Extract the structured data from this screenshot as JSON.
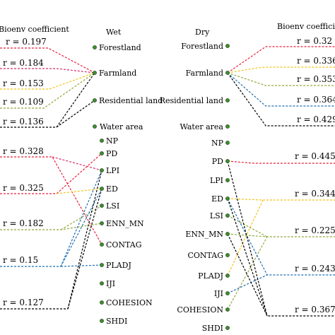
{
  "left_panel": {
    "header": "Bioenv coefficient",
    "title": "Wet",
    "land_use": [
      "Forestland",
      "Farmland",
      "Residential land"
    ],
    "land_use_coefficients": [
      "r = 0.197",
      "r = 0.184",
      "r = 0.153",
      "r = 0.109",
      "r = 0.136"
    ],
    "landscape_metrics": [
      "Water area",
      "NP",
      "PD",
      "LPI",
      "ED",
      "LSI",
      "ENN_MN",
      "CONTAG",
      "PLADJ",
      "IJI",
      "COHESION",
      "SHDI"
    ],
    "metric_coefficients": [
      "r = 0.328",
      "r = 0.325",
      "r = 0.182",
      "r = 0.15",
      "r = 0.127"
    ]
  },
  "right_panel": {
    "header": "Bioenv coefficient",
    "title": "Dry",
    "land_use": [
      "Forestland",
      "Farmland",
      "Residential land"
    ],
    "land_use_coefficients": [
      "r = 0.32",
      "r = 0.336",
      "r = 0.353",
      "r = 0.364",
      "r = 0.429"
    ],
    "landscape_metrics": [
      "Water area",
      "NP",
      "PD",
      "LPI",
      "ED",
      "LSI",
      "ENN_MN",
      "CONTAG",
      "PLADJ",
      "IJI",
      "COHESION",
      "SHDI"
    ],
    "metric_coefficients": [
      "r = 0.445",
      "r = 0.344",
      "r = 0.225",
      "r = 0.243",
      "r = 0.367"
    ]
  },
  "colors": {
    "red": "#e8213a",
    "pink": "#d62c6e",
    "yellow": "#f0c419",
    "olive": "#8fa83a",
    "blue": "#1f6fb5",
    "black": "#000000",
    "node": "#3e8e2e"
  }
}
